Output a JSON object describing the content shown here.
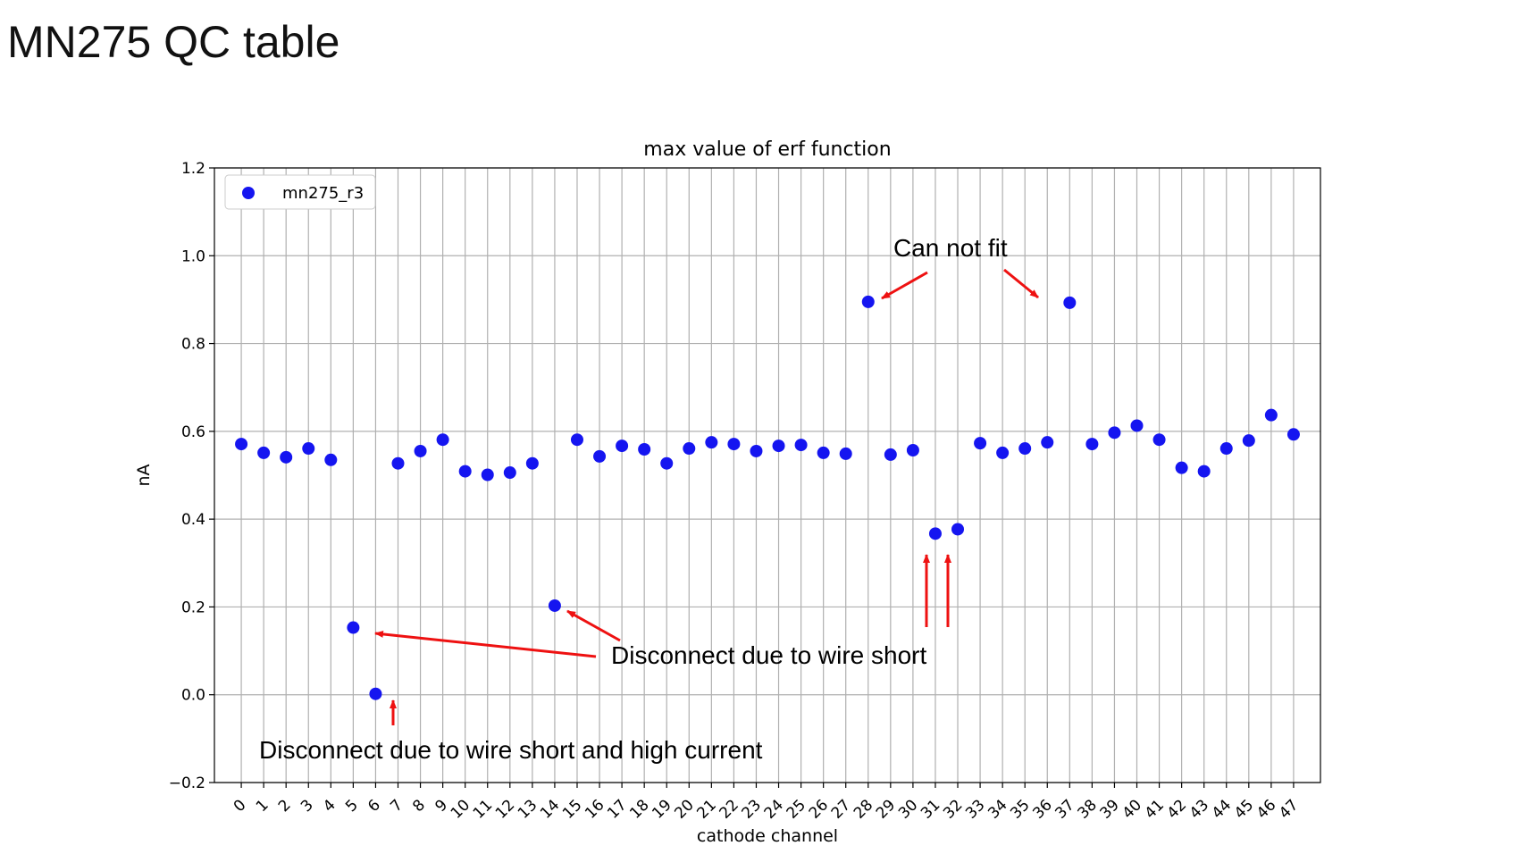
{
  "slide": {
    "title": "MN275 QC table"
  },
  "chart_data": {
    "type": "scatter",
    "title": "max value of erf function",
    "xlabel": "cathode channel",
    "ylabel": "nA",
    "xlim": [
      -1.2,
      48.2
    ],
    "ylim": [
      -0.2,
      1.2
    ],
    "yticks": [
      -0.2,
      0.0,
      0.2,
      0.4,
      0.6,
      0.8,
      1.0,
      1.2
    ],
    "yticklabels": [
      "−0.2",
      "0.0",
      "0.2",
      "0.4",
      "0.6",
      "0.8",
      "1.0",
      "1.2"
    ],
    "xticks": [
      0,
      1,
      2,
      3,
      4,
      5,
      6,
      7,
      8,
      9,
      10,
      11,
      12,
      13,
      14,
      15,
      16,
      17,
      18,
      19,
      20,
      21,
      22,
      23,
      24,
      25,
      26,
      27,
      28,
      29,
      30,
      31,
      32,
      33,
      34,
      35,
      36,
      37,
      38,
      39,
      40,
      41,
      42,
      43,
      44,
      45,
      46,
      47
    ],
    "grid": true,
    "legend_position": "upper-left",
    "marker_color": "#1515f0",
    "series": [
      {
        "name": "mn275_r3",
        "x": [
          0,
          1,
          2,
          3,
          4,
          5,
          6,
          7,
          8,
          9,
          10,
          11,
          12,
          13,
          14,
          15,
          16,
          17,
          18,
          19,
          20,
          21,
          22,
          23,
          24,
          25,
          26,
          27,
          28,
          29,
          30,
          31,
          32,
          33,
          34,
          35,
          36,
          37,
          38,
          39,
          40,
          41,
          42,
          43,
          44,
          45,
          46,
          47
        ],
        "y": [
          0.571,
          0.551,
          0.541,
          0.561,
          0.535,
          0.153,
          0.002,
          0.527,
          0.555,
          0.581,
          0.509,
          0.501,
          0.506,
          0.527,
          0.203,
          0.581,
          0.543,
          0.567,
          0.559,
          0.527,
          0.561,
          0.575,
          0.571,
          0.555,
          0.567,
          0.569,
          0.551,
          0.549,
          0.895,
          0.547,
          0.557,
          0.367,
          0.377,
          0.573,
          0.551,
          0.561,
          0.575,
          0.893,
          0.571,
          0.597,
          0.613,
          0.581,
          0.517,
          0.509,
          0.561,
          0.579,
          0.637,
          0.593
        ]
      }
    ],
    "annotation_color": "#ee1111",
    "annotations": [
      {
        "id": "cannot-fit",
        "text": "Can not fit",
        "points": [
          28,
          37
        ]
      },
      {
        "id": "wire-short",
        "text": "Disconnect due to wire short",
        "points": [
          5,
          14,
          31,
          32
        ]
      },
      {
        "id": "wire-short-high-current",
        "text": "Disconnect due to wire short and high current",
        "points": [
          6
        ]
      }
    ]
  }
}
